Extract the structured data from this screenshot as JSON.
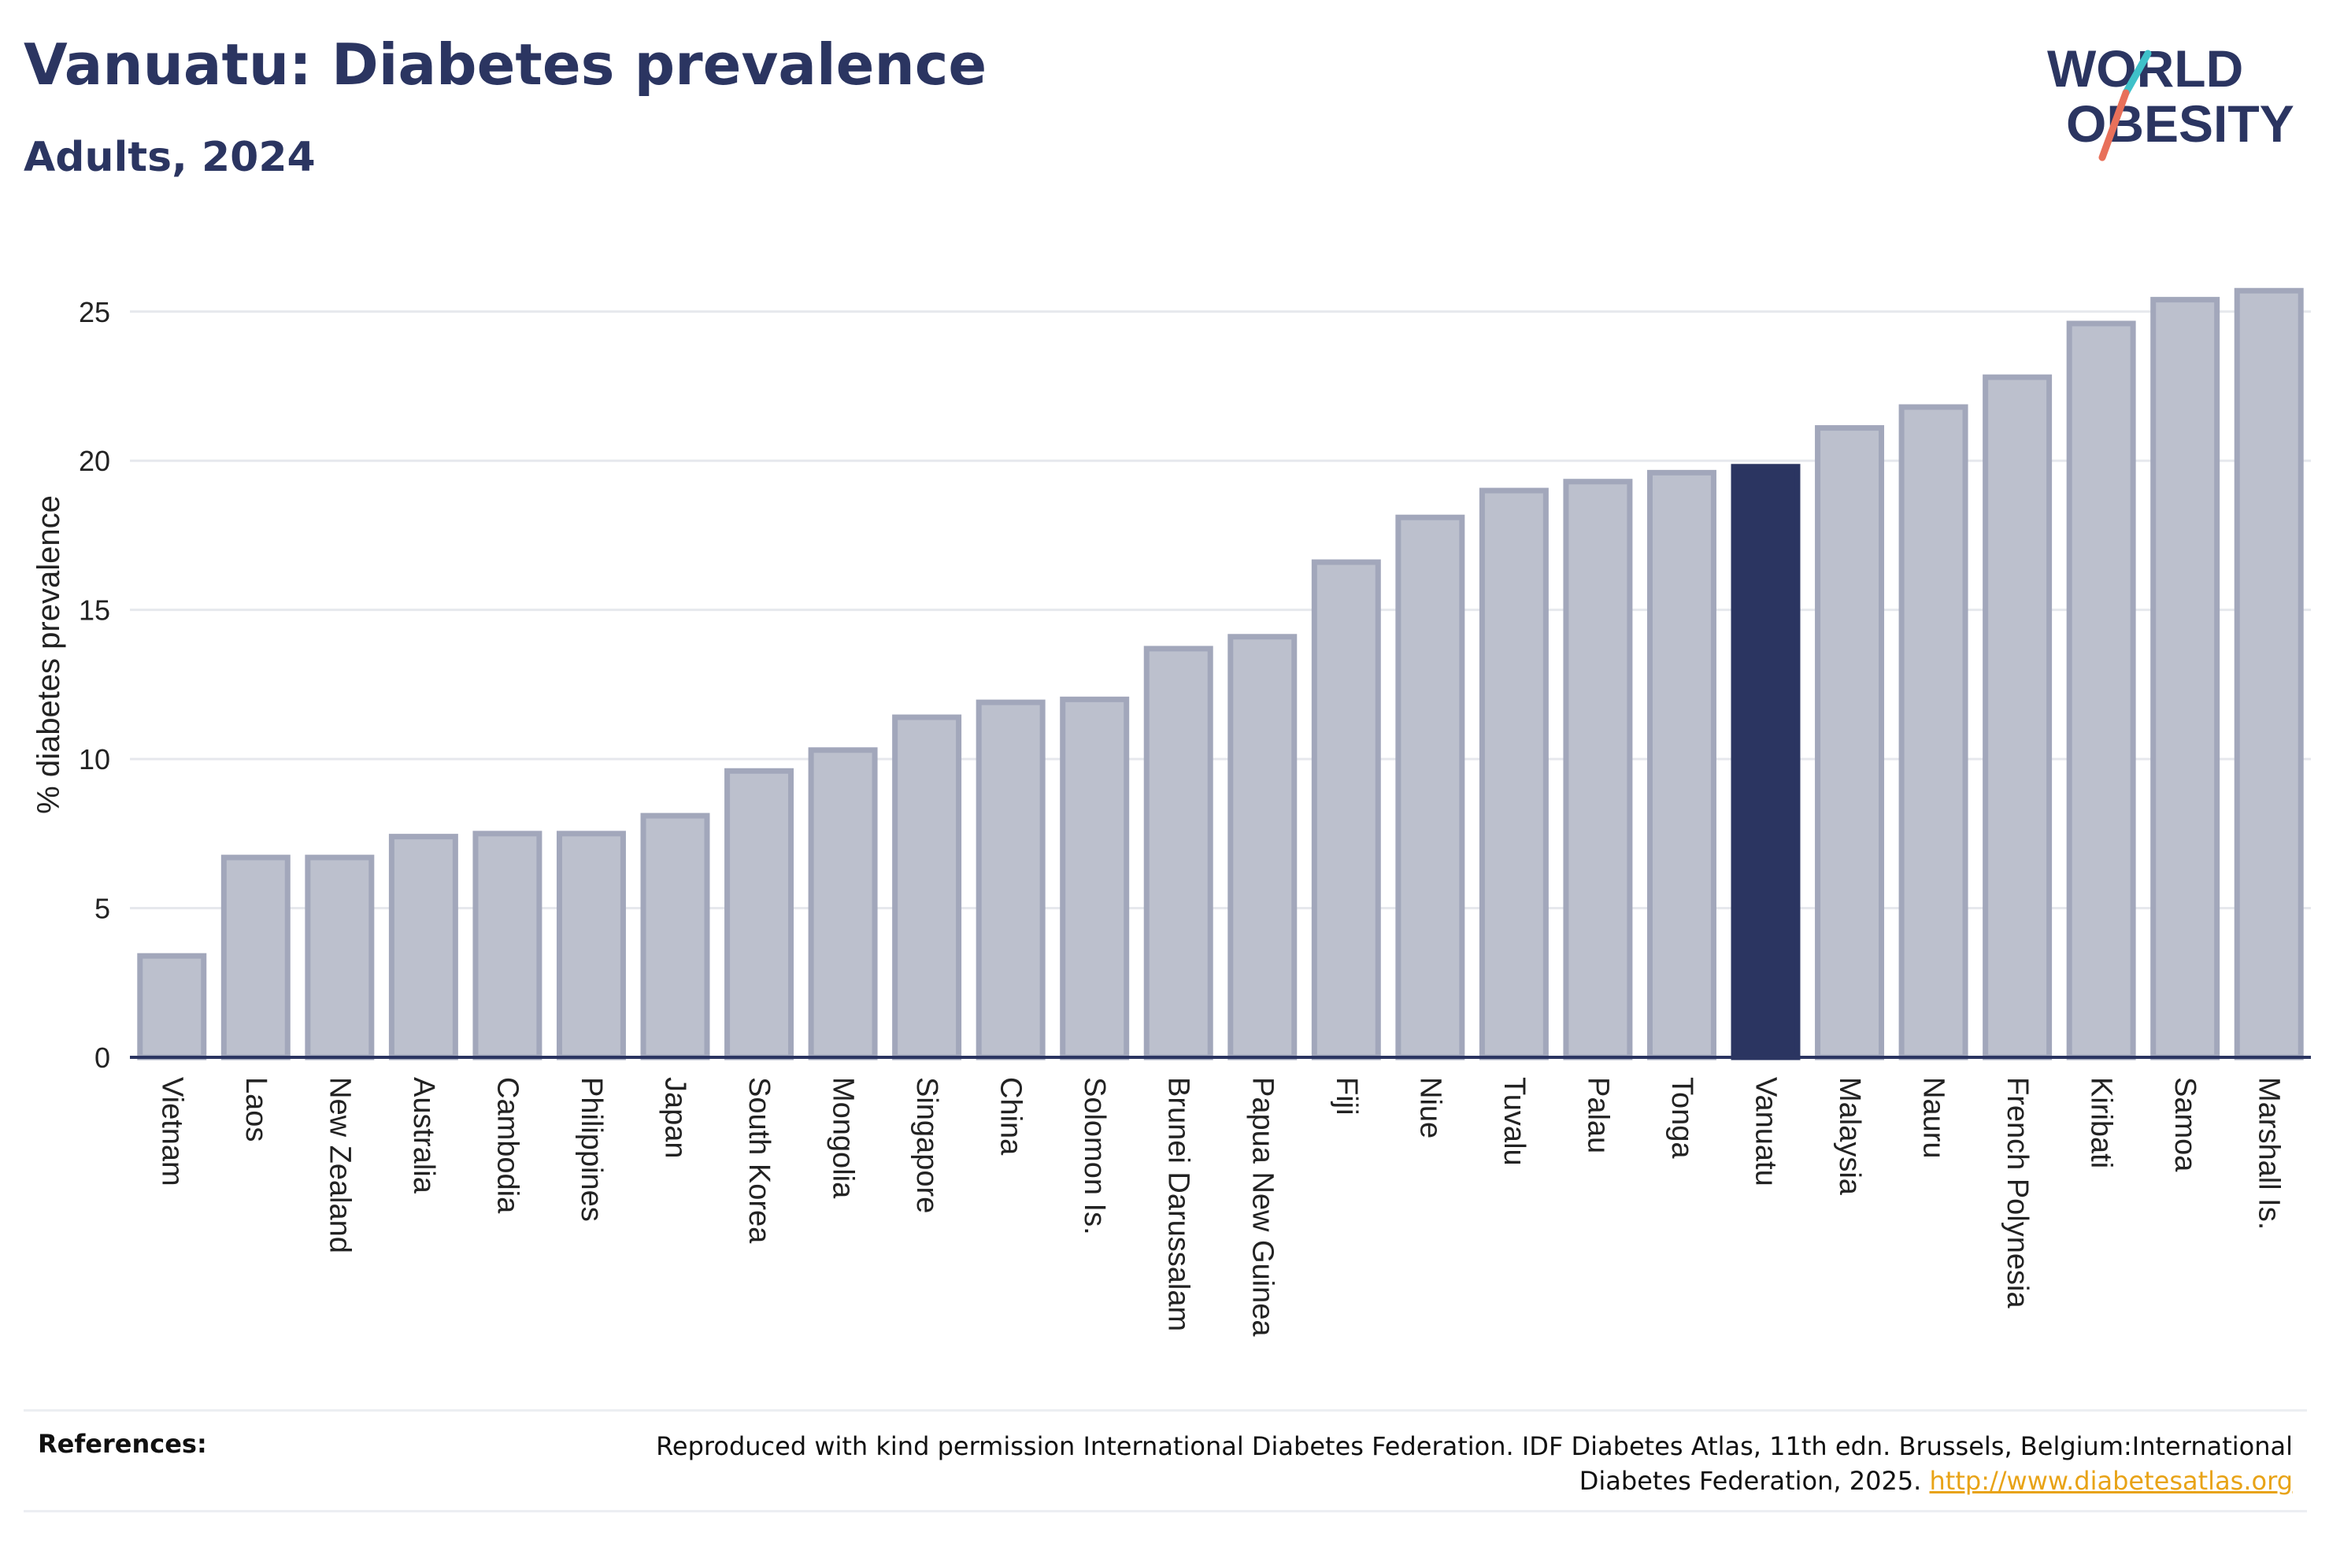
{
  "header": {
    "title": "Vanuatu: Diabetes prevalence",
    "subtitle": "Adults, 2024"
  },
  "logo": {
    "text_line1": "WORLD",
    "text_line2": "OBESITY",
    "text_color": "#2b3561",
    "slash_top_color": "#3fc1c9",
    "slash_bottom_color": "#e8705a"
  },
  "chart_data": {
    "type": "bar",
    "title": "Vanuatu: Diabetes prevalence",
    "subtitle": "Adults, 2024",
    "xlabel": "",
    "ylabel": "% diabetes prevalence",
    "ylim": [
      0,
      27
    ],
    "yticks": [
      0,
      5,
      10,
      15,
      20,
      25
    ],
    "grid": true,
    "highlight": "Vanuatu",
    "colors": {
      "bar_fill": "#bcc0cd",
      "bar_stroke": "#a2a7bb",
      "highlight_fill": "#2b3561",
      "grid": "#e6e8ed",
      "axis": "#2b3561"
    },
    "categories": [
      "Vietnam",
      "Laos",
      "New Zealand",
      "Australia",
      "Cambodia",
      "Philippines",
      "Japan",
      "South Korea",
      "Mongolia",
      "Singapore",
      "China",
      "Solomon Is.",
      "Brunei Darussalam",
      "Papua New Guinea",
      "Fiji",
      "Niue",
      "Tuvalu",
      "Palau",
      "Tonga",
      "Vanuatu",
      "Malaysia",
      "Nauru",
      "French Polynesia",
      "Kiribati",
      "Samoa",
      "Marshall Is."
    ],
    "values": [
      3.4,
      6.7,
      6.7,
      7.4,
      7.5,
      7.5,
      8.1,
      9.6,
      10.3,
      11.4,
      11.9,
      12.0,
      13.7,
      14.1,
      16.6,
      18.1,
      19.0,
      19.3,
      19.6,
      19.8,
      21.1,
      21.8,
      22.8,
      24.6,
      25.4,
      25.7
    ]
  },
  "references": {
    "label": "References:",
    "text": "Reproduced with kind permission International Diabetes Federation. IDF Diabetes Atlas, 11th edn. Brussels, Belgium:International Diabetes Federation, 2025.",
    "link": "http://www.diabetesatlas.org"
  }
}
